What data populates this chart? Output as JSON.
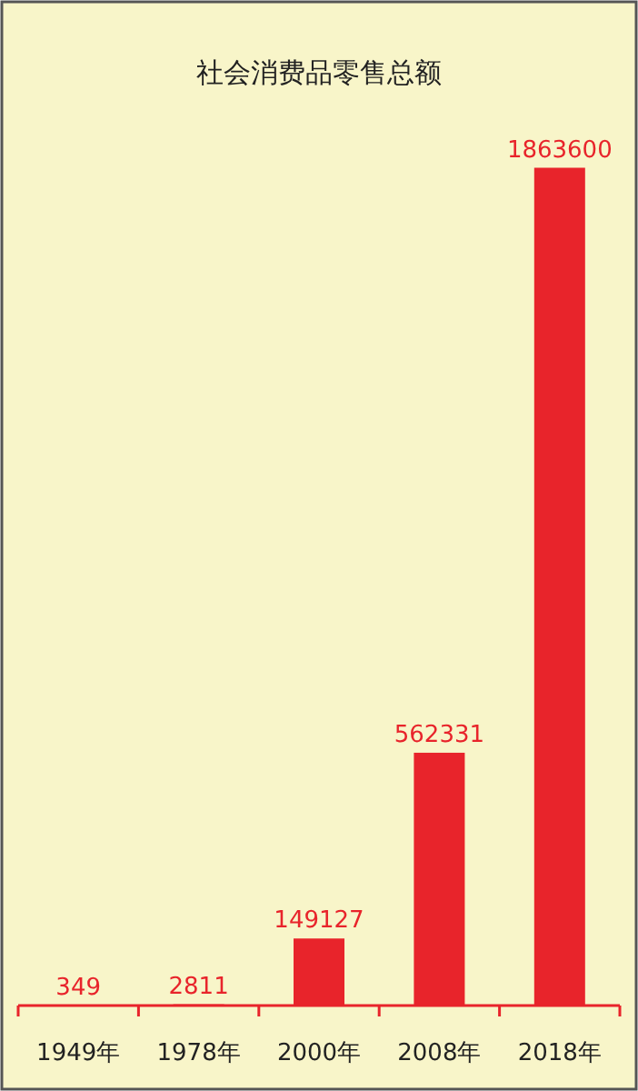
{
  "chart_data": {
    "type": "bar",
    "title": "社会消费品零售总额",
    "categories": [
      "1949年",
      "1978年",
      "2000年",
      "2008年",
      "2018年"
    ],
    "values": [
      349,
      2811,
      149127,
      562331,
      1863600
    ],
    "color": "#e8242b",
    "data_labels": true
  }
}
